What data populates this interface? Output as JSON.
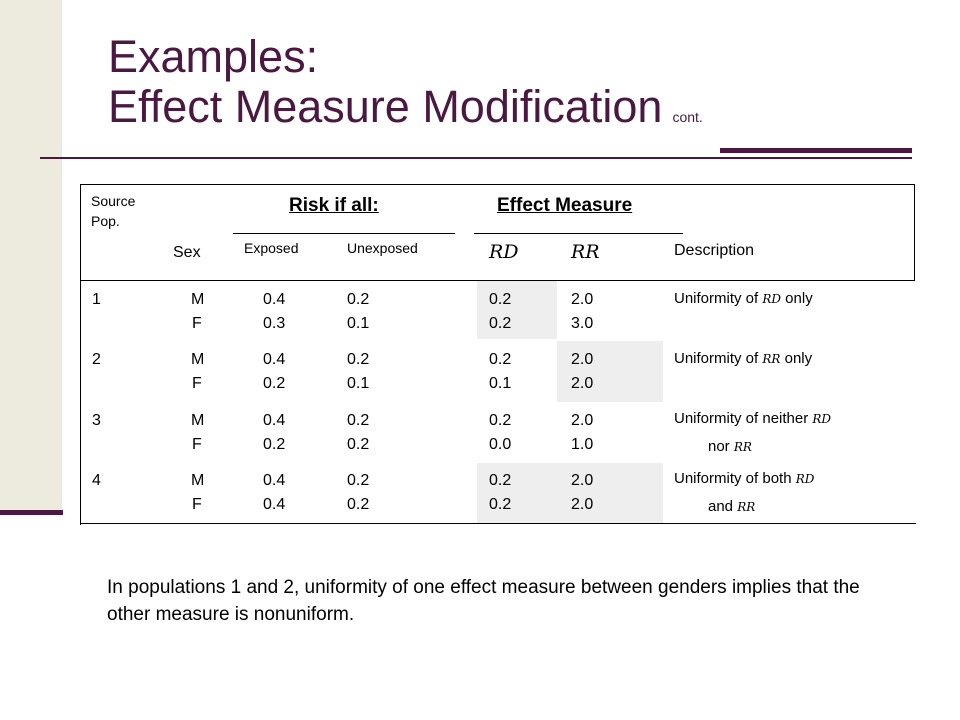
{
  "slide": {
    "title_line1": "Examples:",
    "title_line2": "Effect Measure Modification",
    "title_suffix": "cont."
  },
  "table": {
    "header": {
      "source_pop": "Source Pop.",
      "sex": "Sex",
      "risk_if_all": "Risk if all:",
      "effect_measure": "Effect Measure",
      "exposed": "Exposed",
      "unexposed": "Unexposed",
      "rd": "RD",
      "rr": "RR",
      "description": "Description"
    },
    "rows": [
      {
        "pop": "1",
        "sex_m": "M",
        "sex_f": "F",
        "exp_m": "0.4",
        "exp_f": "0.3",
        "unexp_m": "0.2",
        "unexp_f": "0.1",
        "rd_m": "0.2",
        "rd_f": "0.2",
        "rr_m": "2.0",
        "rr_f": "3.0",
        "desc_a": "Uniformity of ",
        "desc_hl": "RD",
        "desc_b": " only",
        "desc_c": "",
        "desc_hl2": ""
      },
      {
        "pop": "2",
        "sex_m": "M",
        "sex_f": "F",
        "exp_m": "0.4",
        "exp_f": "0.2",
        "unexp_m": "0.2",
        "unexp_f": "0.1",
        "rd_m": "0.2",
        "rd_f": "0.1",
        "rr_m": "2.0",
        "rr_f": "2.0",
        "desc_a": "Uniformity of ",
        "desc_hl": "RR",
        "desc_b": " only",
        "desc_c": "",
        "desc_hl2": ""
      },
      {
        "pop": "3",
        "sex_m": "M",
        "sex_f": "F",
        "exp_m": "0.4",
        "exp_f": "0.2",
        "unexp_m": "0.2",
        "unexp_f": "0.2",
        "rd_m": "0.2",
        "rd_f": "0.0",
        "rr_m": "2.0",
        "rr_f": "1.0",
        "desc_a": "Uniformity of neither ",
        "desc_hl": "RD",
        "desc_b": "",
        "desc_c": "nor ",
        "desc_hl2": "RR"
      },
      {
        "pop": "4",
        "sex_m": "M",
        "sex_f": "F",
        "exp_m": "0.4",
        "exp_f": "0.4",
        "unexp_m": "0.2",
        "unexp_f": "0.2",
        "rd_m": "0.2",
        "rd_f": "0.2",
        "rr_m": "2.0",
        "rr_f": "2.0",
        "desc_a": "Uniformity of both ",
        "desc_hl": "RD",
        "desc_b": "",
        "desc_c": "and ",
        "desc_hl2": "RR"
      }
    ]
  },
  "note": "In populations 1 and 2, uniformity of one effect measure between genders implies that the other measure is nonuniform.",
  "colors": {
    "accent": "#4a1840",
    "sidebar": "#ecebdd",
    "shade": "#eeeeee"
  }
}
